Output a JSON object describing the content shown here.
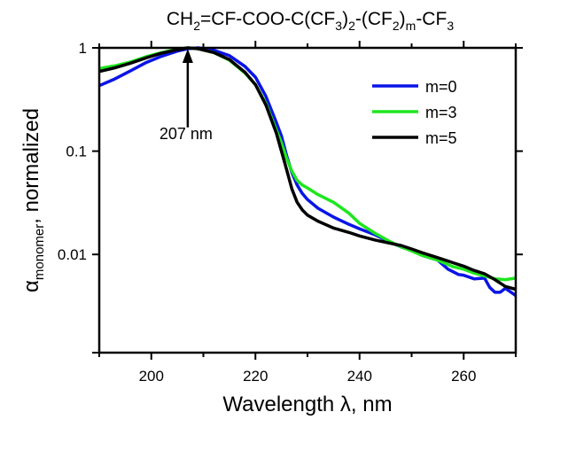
{
  "chart_data": {
    "type": "line",
    "title": {
      "main": "CH",
      "parts": [
        {
          "t": "CH",
          "sub": false
        },
        {
          "t": "2",
          "sub": true
        },
        {
          "t": "=CF-COO-C(CF",
          "sub": false
        },
        {
          "t": "3",
          "sub": true
        },
        {
          "t": ")",
          "sub": false
        },
        {
          "t": "2",
          "sub": true
        },
        {
          "t": "-(CF",
          "sub": false
        },
        {
          "t": "2",
          "sub": true
        },
        {
          "t": ")",
          "sub": false
        },
        {
          "t": "m",
          "sub": true
        },
        {
          "t": "-CF",
          "sub": false
        },
        {
          "t": "3",
          "sub": true
        }
      ]
    },
    "title_text": "CH2=CF-COO-C(CF3)2-(CF2)m-CF3",
    "xlabel": "Wavelength λ, nm",
    "ylabel": {
      "symbol": "α",
      "subscript": "monomer",
      "rest": ", normalized"
    },
    "xlim": [
      190,
      270
    ],
    "ylim": [
      0.00112,
      1
    ],
    "yscale": "log",
    "xticks": [
      200,
      220,
      240,
      260
    ],
    "xminor": [
      190,
      210,
      230,
      250,
      270
    ],
    "yticks": [
      {
        "v": 1,
        "label": "1"
      },
      {
        "v": 0.1,
        "label": "0.1"
      },
      {
        "v": 0.01,
        "label": "0.01"
      }
    ],
    "legend": {
      "position": "top-right",
      "entries": [
        "m=0",
        "m=3",
        "m=5"
      ]
    },
    "annotation": {
      "text": "207 nm",
      "x": 207,
      "arrow_from_y": 0.17,
      "arrow_to_y": 0.98
    },
    "series": [
      {
        "name": "m=0",
        "color": "#0a14e6",
        "x": [
          190,
          193,
          196,
          199,
          202,
          205,
          207,
          209,
          212,
          215,
          218,
          220,
          222,
          224,
          225,
          226,
          227,
          228,
          229,
          230,
          232,
          235,
          238,
          240,
          243,
          246,
          248,
          250,
          252,
          255,
          257,
          259,
          260,
          262,
          264,
          265,
          266,
          267,
          268,
          270
        ],
        "y": [
          0.43,
          0.5,
          0.6,
          0.72,
          0.83,
          0.93,
          0.98,
          1.0,
          0.95,
          0.84,
          0.66,
          0.52,
          0.34,
          0.19,
          0.14,
          0.09,
          0.062,
          0.047,
          0.039,
          0.034,
          0.028,
          0.023,
          0.0195,
          0.0177,
          0.0155,
          0.0131,
          0.0118,
          0.011,
          0.0098,
          0.0088,
          0.0072,
          0.0064,
          0.0063,
          0.0058,
          0.0059,
          0.0048,
          0.0043,
          0.0043,
          0.0047,
          0.004
        ]
      },
      {
        "name": "m=3",
        "color": "#1ee61e",
        "x": [
          190,
          193,
          196,
          199,
          202,
          205,
          207,
          209,
          212,
          215,
          218,
          220,
          222,
          224,
          225,
          226,
          227,
          228,
          229,
          230,
          232,
          235,
          238,
          240,
          243,
          246,
          248,
          250,
          252,
          255,
          258,
          260,
          262,
          264,
          266,
          268,
          270
        ],
        "y": [
          0.63,
          0.67,
          0.73,
          0.82,
          0.9,
          0.97,
          1.0,
          0.98,
          0.9,
          0.76,
          0.57,
          0.44,
          0.29,
          0.16,
          0.12,
          0.085,
          0.064,
          0.052,
          0.047,
          0.044,
          0.038,
          0.032,
          0.025,
          0.02,
          0.016,
          0.0132,
          0.0118,
          0.0108,
          0.0098,
          0.0088,
          0.0076,
          0.0072,
          0.0066,
          0.0062,
          0.0058,
          0.0057,
          0.0059
        ]
      },
      {
        "name": "m=5",
        "color": "#000000",
        "x": [
          190,
          193,
          196,
          199,
          202,
          205,
          207,
          209,
          212,
          215,
          218,
          220,
          222,
          224,
          225,
          226,
          227,
          228,
          229,
          230,
          232,
          235,
          238,
          240,
          243,
          246,
          248,
          250,
          252,
          255,
          258,
          260,
          262,
          264,
          266,
          268,
          270
        ],
        "y": [
          0.59,
          0.64,
          0.71,
          0.8,
          0.89,
          0.96,
          1.0,
          0.98,
          0.9,
          0.77,
          0.58,
          0.44,
          0.28,
          0.15,
          0.1,
          0.066,
          0.043,
          0.032,
          0.027,
          0.024,
          0.021,
          0.018,
          0.0163,
          0.0151,
          0.0138,
          0.0128,
          0.0122,
          0.0113,
          0.0104,
          0.0093,
          0.0083,
          0.0077,
          0.007,
          0.0065,
          0.0057,
          0.0049,
          0.0046
        ]
      }
    ]
  }
}
